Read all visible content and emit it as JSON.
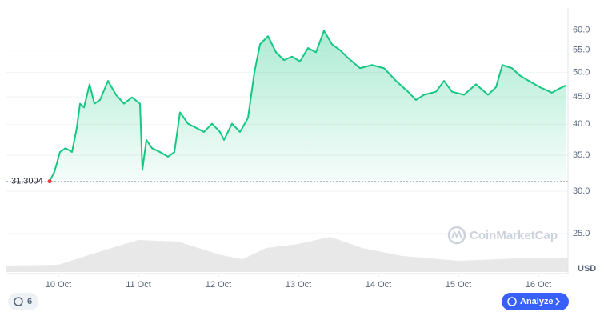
{
  "chart_data": {
    "type": "line",
    "log_scale": true,
    "grid": true,
    "color": "#16c784",
    "reference_value": 31.3004,
    "reference_color": "#ea3943",
    "x": [
      9.89,
      9.95,
      10.02,
      10.09,
      10.17,
      10.23,
      10.27,
      10.32,
      10.39,
      10.45,
      10.52,
      10.62,
      10.72,
      10.82,
      10.92,
      11.02,
      11.05,
      11.1,
      11.17,
      11.27,
      11.37,
      11.45,
      11.52,
      11.62,
      11.72,
      11.82,
      11.92,
      12.02,
      12.07,
      12.17,
      12.27,
      12.37,
      12.45,
      12.52,
      12.62,
      12.72,
      12.82,
      12.92,
      13.02,
      13.12,
      13.22,
      13.32,
      13.42,
      13.52,
      13.62,
      13.77,
      13.92,
      14.07,
      14.22,
      14.37,
      14.47,
      14.57,
      14.72,
      14.82,
      14.92,
      15.07,
      15.22,
      15.37,
      15.47,
      15.55,
      15.67,
      15.77,
      15.87,
      16.02,
      16.17,
      16.27,
      16.35
    ],
    "values": [
      31.3,
      32.6,
      35.5,
      36.1,
      35.5,
      39.4,
      43.7,
      43.0,
      47.5,
      43.7,
      44.4,
      48.2,
      45.4,
      43.7,
      44.9,
      43.7,
      32.9,
      37.4,
      36.1,
      35.5,
      34.8,
      35.5,
      42.1,
      40.1,
      39.4,
      38.7,
      40.1,
      38.7,
      37.4,
      40.1,
      38.7,
      41.1,
      50.0,
      56.4,
      58.4,
      54.5,
      52.7,
      53.5,
      52.4,
      55.5,
      54.5,
      59.8,
      56.4,
      55.0,
      53.2,
      50.9,
      51.6,
      50.9,
      48.2,
      46.0,
      44.4,
      45.4,
      46.0,
      48.2,
      46.0,
      45.4,
      47.5,
      45.4,
      46.9,
      51.6,
      50.9,
      49.3,
      48.3,
      46.9,
      45.8,
      46.7,
      47.3
    ],
    "xlim": [
      9.35,
      16.37
    ],
    "xticks": [
      {
        "value": 10,
        "label": "10 Oct"
      },
      {
        "value": 11,
        "label": "11 Oct"
      },
      {
        "value": 12,
        "label": "12 Oct"
      },
      {
        "value": 13,
        "label": "13 Oct"
      },
      {
        "value": 14,
        "label": "14 Oct"
      },
      {
        "value": 15,
        "label": "15 Oct"
      },
      {
        "value": 16,
        "label": "16 Oct"
      }
    ],
    "ylim": [
      21.2,
      64.8
    ],
    "yticks": [
      {
        "value": 60,
        "label": "60.0"
      },
      {
        "value": 55,
        "label": "55.0"
      },
      {
        "value": 50,
        "label": "50.0"
      },
      {
        "value": 45,
        "label": "45.0"
      },
      {
        "value": 40,
        "label": "40.0"
      },
      {
        "value": 35,
        "label": "35.0"
      },
      {
        "value": 30,
        "label": "30.0"
      },
      {
        "value": 25,
        "label": "25.0"
      }
    ],
    "currency": "USD",
    "volume": {
      "color": "#e8e8e8",
      "x": [
        9.35,
        10.0,
        10.5,
        11.0,
        11.5,
        12.0,
        12.3,
        12.6,
        13.0,
        13.4,
        13.8,
        14.3,
        15.0,
        15.5,
        16.0,
        16.37
      ],
      "values": [
        8,
        9,
        25,
        40,
        38,
        22,
        16,
        30,
        35,
        44,
        30,
        20,
        14,
        16,
        18,
        17
      ],
      "y2lim": [
        0,
        100
      ]
    }
  },
  "ui": {
    "watermark": "CoinMarketCap",
    "history_count": "6",
    "analyze": "Analyze"
  }
}
